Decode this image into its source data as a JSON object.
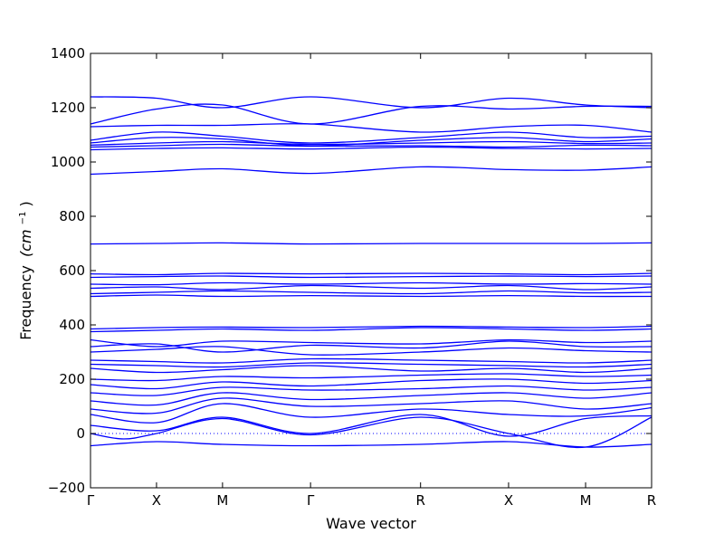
{
  "chart_data": {
    "type": "line",
    "title": "",
    "xlabel": "Wave vector",
    "ylabel": "Frequency",
    "ylabel_unit_html": "(cm",
    "ylabel_unit_exp": "−1",
    "ylabel_unit_close": ")",
    "ylim": [
      -200,
      1400
    ],
    "yticks": [
      -200,
      0,
      200,
      400,
      600,
      800,
      1000,
      1200,
      1400
    ],
    "xlim": [
      0,
      6
    ],
    "high_symmetry_points": [
      {
        "label": "Γ",
        "x": 0.0
      },
      {
        "label": "X",
        "x": 0.6
      },
      {
        "label": "M",
        "x": 1.2
      },
      {
        "label": "Γ",
        "x": 2.0
      },
      {
        "label": "R",
        "x": 3.0
      },
      {
        "label": "X",
        "x": 3.8
      },
      {
        "label": "M",
        "x": 4.5
      },
      {
        "label": "R",
        "x": 5.1
      }
    ],
    "x_end": 5.1,
    "line_color": "#0000ff",
    "zero_line": true,
    "bands": [
      {
        "x": [
          0,
          0.6,
          1.2,
          2.0,
          3.0,
          3.8,
          4.5,
          5.1
        ],
        "y": [
          -45,
          -30,
          -40,
          -45,
          -40,
          -30,
          -50,
          -40
        ]
      },
      {
        "x": [
          0,
          0.3,
          0.6,
          1.2,
          2.0,
          3.0,
          3.8,
          4.5,
          5.1
        ],
        "y": [
          0,
          -20,
          0,
          55,
          -5,
          60,
          0,
          -50,
          60
        ]
      },
      {
        "x": [
          0,
          0.6,
          1.2,
          2.0,
          3.0,
          3.8,
          4.5,
          5.1
        ],
        "y": [
          30,
          10,
          60,
          0,
          70,
          -10,
          55,
          65
        ]
      },
      {
        "x": [
          0,
          0.6,
          1.2,
          2.0,
          3.0,
          3.8,
          4.5,
          5.1
        ],
        "y": [
          70,
          40,
          110,
          60,
          90,
          70,
          65,
          95
        ]
      },
      {
        "x": [
          0,
          0.6,
          1.2,
          2.0,
          3.0,
          3.8,
          4.5,
          5.1
        ],
        "y": [
          90,
          75,
          130,
          100,
          110,
          120,
          90,
          110
        ]
      },
      {
        "x": [
          0,
          0.6,
          1.2,
          2.0,
          3.0,
          3.8,
          4.5,
          5.1
        ],
        "y": [
          120,
          105,
          150,
          125,
          140,
          150,
          130,
          150
        ]
      },
      {
        "x": [
          0,
          0.6,
          1.2,
          2.0,
          3.0,
          3.8,
          4.5,
          5.1
        ],
        "y": [
          150,
          140,
          170,
          160,
          165,
          175,
          160,
          170
        ]
      },
      {
        "x": [
          0,
          0.6,
          1.2,
          2.0,
          3.0,
          3.8,
          4.5,
          5.1
        ],
        "y": [
          180,
          165,
          190,
          175,
          195,
          200,
          185,
          195
        ]
      },
      {
        "x": [
          0,
          0.6,
          1.2,
          2.0,
          3.0,
          3.8,
          4.5,
          5.1
        ],
        "y": [
          200,
          195,
          210,
          205,
          215,
          220,
          210,
          215
        ]
      },
      {
        "x": [
          0,
          0.6,
          1.2,
          2.0,
          3.0,
          3.8,
          4.5,
          5.1
        ],
        "y": [
          240,
          225,
          235,
          250,
          230,
          240,
          225,
          240
        ]
      },
      {
        "x": [
          0,
          0.6,
          1.2,
          2.0,
          3.0,
          3.8,
          4.5,
          5.1
        ],
        "y": [
          255,
          250,
          245,
          260,
          255,
          250,
          245,
          255
        ]
      },
      {
        "x": [
          0,
          0.6,
          1.2,
          2.0,
          3.0,
          3.8,
          4.5,
          5.1
        ],
        "y": [
          270,
          265,
          260,
          275,
          270,
          265,
          260,
          270
        ]
      },
      {
        "x": [
          0,
          0.6,
          1.2,
          2.0,
          3.0,
          3.8,
          4.5,
          5.1
        ],
        "y": [
          300,
          310,
          320,
          290,
          300,
          315,
          305,
          300
        ]
      },
      {
        "x": [
          0,
          0.6,
          1.2,
          2.0,
          3.0,
          3.8,
          4.5,
          5.1
        ],
        "y": [
          320,
          330,
          300,
          325,
          315,
          340,
          320,
          320
        ]
      },
      {
        "x": [
          0,
          0.6,
          1.2,
          2.0,
          3.0,
          3.8,
          4.5,
          5.1
        ],
        "y": [
          345,
          320,
          340,
          335,
          330,
          345,
          335,
          340
        ]
      },
      {
        "x": [
          0,
          0.6,
          1.2,
          2.0,
          3.0,
          3.8,
          4.5,
          5.1
        ],
        "y": [
          375,
          380,
          385,
          380,
          390,
          385,
          380,
          385
        ]
      },
      {
        "x": [
          0,
          0.6,
          1.2,
          2.0,
          3.0,
          3.8,
          4.5,
          5.1
        ],
        "y": [
          385,
          390,
          392,
          390,
          395,
          392,
          390,
          395
        ]
      },
      {
        "x": [
          0,
          0.6,
          1.2,
          2.0,
          3.0,
          3.8,
          4.5,
          5.1
        ],
        "y": [
          505,
          510,
          505,
          508,
          505,
          508,
          505,
          505
        ]
      },
      {
        "x": [
          0,
          0.6,
          1.2,
          2.0,
          3.0,
          3.8,
          4.5,
          5.1
        ],
        "y": [
          515,
          520,
          525,
          520,
          515,
          525,
          518,
          520
        ]
      },
      {
        "x": [
          0,
          0.6,
          1.2,
          2.0,
          3.0,
          3.8,
          4.5,
          5.1
        ],
        "y": [
          535,
          540,
          530,
          545,
          535,
          545,
          530,
          540
        ]
      },
      {
        "x": [
          0,
          0.6,
          1.2,
          2.0,
          3.0,
          3.8,
          4.5,
          5.1
        ],
        "y": [
          550,
          548,
          555,
          550,
          555,
          550,
          552,
          550
        ]
      },
      {
        "x": [
          0,
          0.6,
          1.2,
          2.0,
          3.0,
          3.8,
          4.5,
          5.1
        ],
        "y": [
          575,
          578,
          580,
          575,
          578,
          580,
          578,
          580
        ]
      },
      {
        "x": [
          0,
          0.6,
          1.2,
          2.0,
          3.0,
          3.8,
          4.5,
          5.1
        ],
        "y": [
          588,
          585,
          590,
          588,
          590,
          588,
          585,
          590
        ]
      },
      {
        "x": [
          0,
          0.6,
          1.2,
          2.0,
          3.0,
          3.8,
          4.5,
          5.1
        ],
        "y": [
          698,
          700,
          702,
          698,
          700,
          700,
          700,
          702
        ]
      },
      {
        "x": [
          0,
          0.6,
          1.2,
          2.0,
          3.0,
          3.8,
          4.5,
          5.1
        ],
        "y": [
          955,
          965,
          975,
          958,
          982,
          972,
          970,
          982
        ]
      },
      {
        "x": [
          0,
          0.6,
          1.2,
          2.0,
          3.0,
          3.8,
          4.5,
          5.1
        ],
        "y": [
          1045,
          1050,
          1052,
          1048,
          1055,
          1050,
          1048,
          1050
        ]
      },
      {
        "x": [
          0,
          0.6,
          1.2,
          2.0,
          3.0,
          3.8,
          4.5,
          5.1
        ],
        "y": [
          1055,
          1060,
          1065,
          1058,
          1060,
          1055,
          1062,
          1060
        ]
      },
      {
        "x": [
          0,
          0.6,
          1.2,
          2.0,
          3.0,
          3.8,
          4.5,
          5.1
        ],
        "y": [
          1062,
          1070,
          1075,
          1065,
          1070,
          1075,
          1068,
          1070
        ]
      },
      {
        "x": [
          0,
          0.6,
          1.2,
          2.0,
          3.0,
          3.8,
          4.5,
          5.1
        ],
        "y": [
          1070,
          1090,
          1085,
          1060,
          1080,
          1090,
          1075,
          1085
        ]
      },
      {
        "x": [
          0,
          0.6,
          1.2,
          2.0,
          3.0,
          3.8,
          4.5,
          5.1
        ],
        "y": [
          1080,
          1110,
          1095,
          1070,
          1090,
          1110,
          1090,
          1095
        ]
      },
      {
        "x": [
          0,
          0.6,
          1.2,
          2.0,
          3.0,
          3.8,
          4.5,
          5.1
        ],
        "y": [
          1130,
          1135,
          1135,
          1140,
          1110,
          1130,
          1135,
          1110
        ]
      },
      {
        "x": [
          0,
          0.6,
          1.2,
          2.0,
          3.0,
          3.8,
          4.5,
          5.1
        ],
        "y": [
          1140,
          1195,
          1210,
          1140,
          1205,
          1195,
          1205,
          1205
        ]
      },
      {
        "x": [
          0,
          0.6,
          1.2,
          2.0,
          3.0,
          3.8,
          4.5,
          5.1
        ],
        "y": [
          1240,
          1235,
          1200,
          1240,
          1200,
          1235,
          1210,
          1200
        ]
      }
    ]
  }
}
